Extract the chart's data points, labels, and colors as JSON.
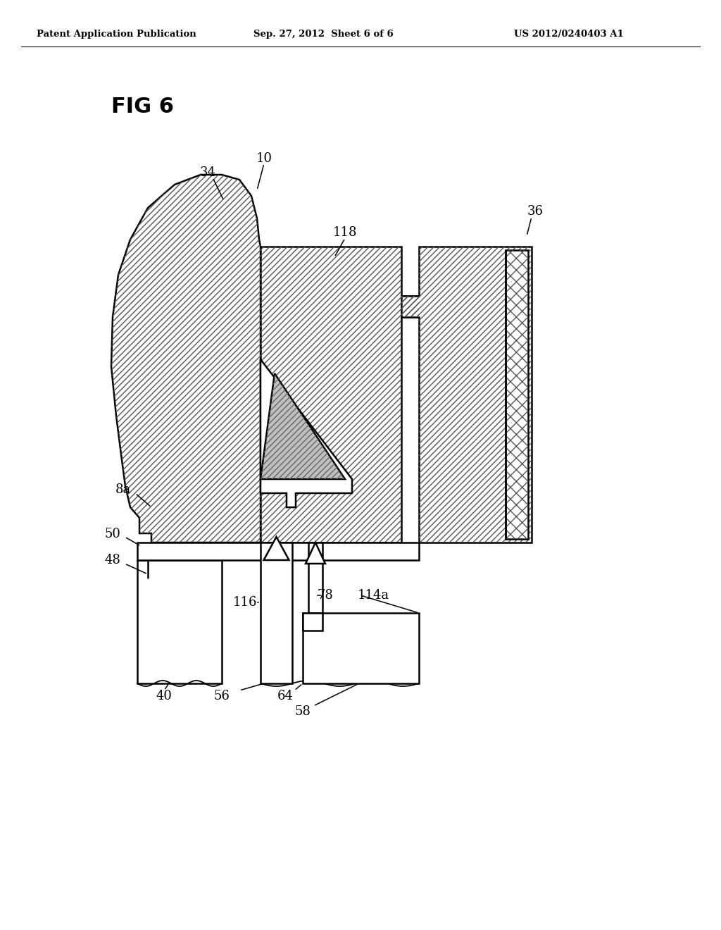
{
  "header_left": "Patent Application Publication",
  "header_center": "Sep. 27, 2012  Sheet 6 of 6",
  "header_right": "US 2012/0240403 A1",
  "fig_label": "FIG 6",
  "bg_color": "#ffffff"
}
